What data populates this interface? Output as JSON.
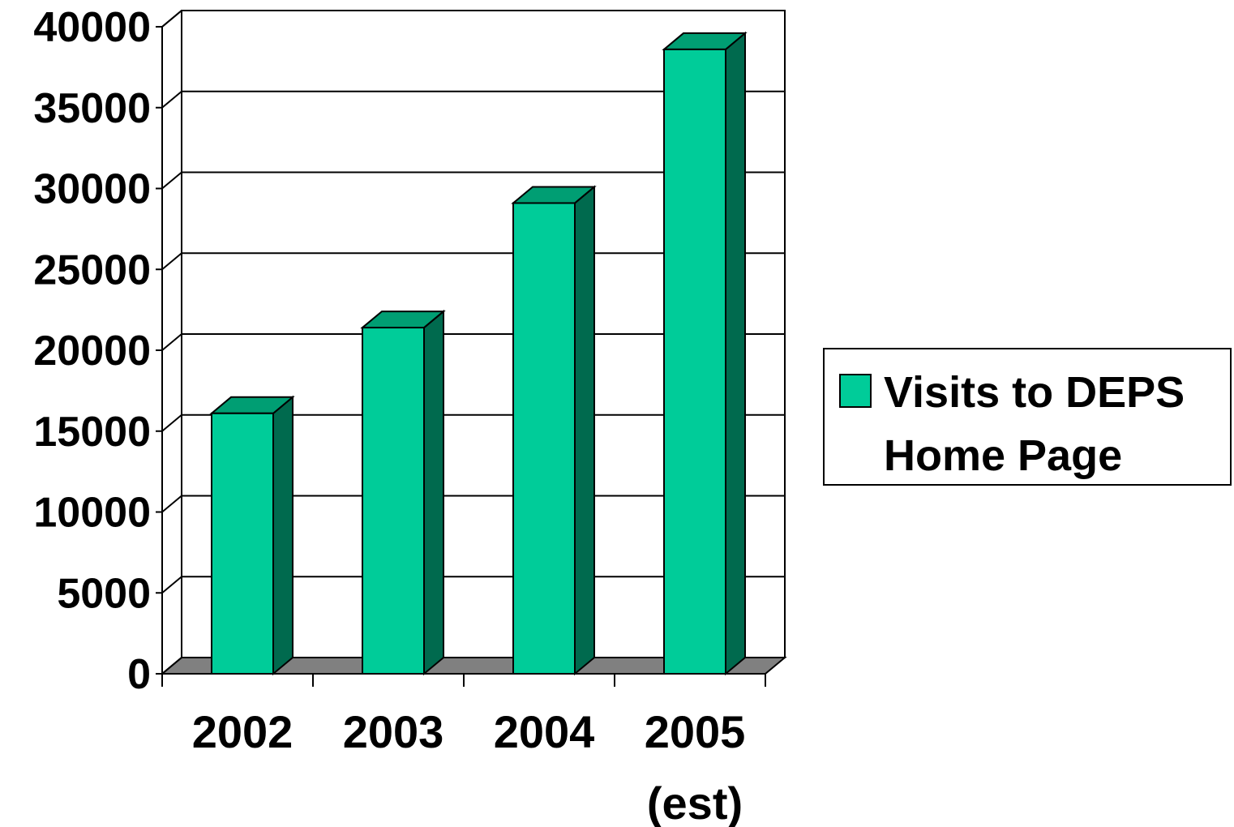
{
  "chart_data": {
    "type": "bar",
    "categories": [
      [
        "2002"
      ],
      [
        "2003"
      ],
      [
        "2004"
      ],
      [
        "2005",
        "(est)"
      ]
    ],
    "series": [
      {
        "name": "Visits to DEPS Home Page",
        "values": [
          16100,
          21400,
          29100,
          38600
        ]
      }
    ],
    "ylim": [
      0,
      40000
    ],
    "yticks": [
      0,
      5000,
      10000,
      15000,
      20000,
      25000,
      30000,
      35000,
      40000
    ],
    "grid": true,
    "legend_position": "right",
    "three_d": true,
    "colors": {
      "bar_front": "#00CC99",
      "bar_side": "#006A4E",
      "bar_top": "#009E73",
      "floor": "#808080",
      "grid": "#000000"
    }
  }
}
